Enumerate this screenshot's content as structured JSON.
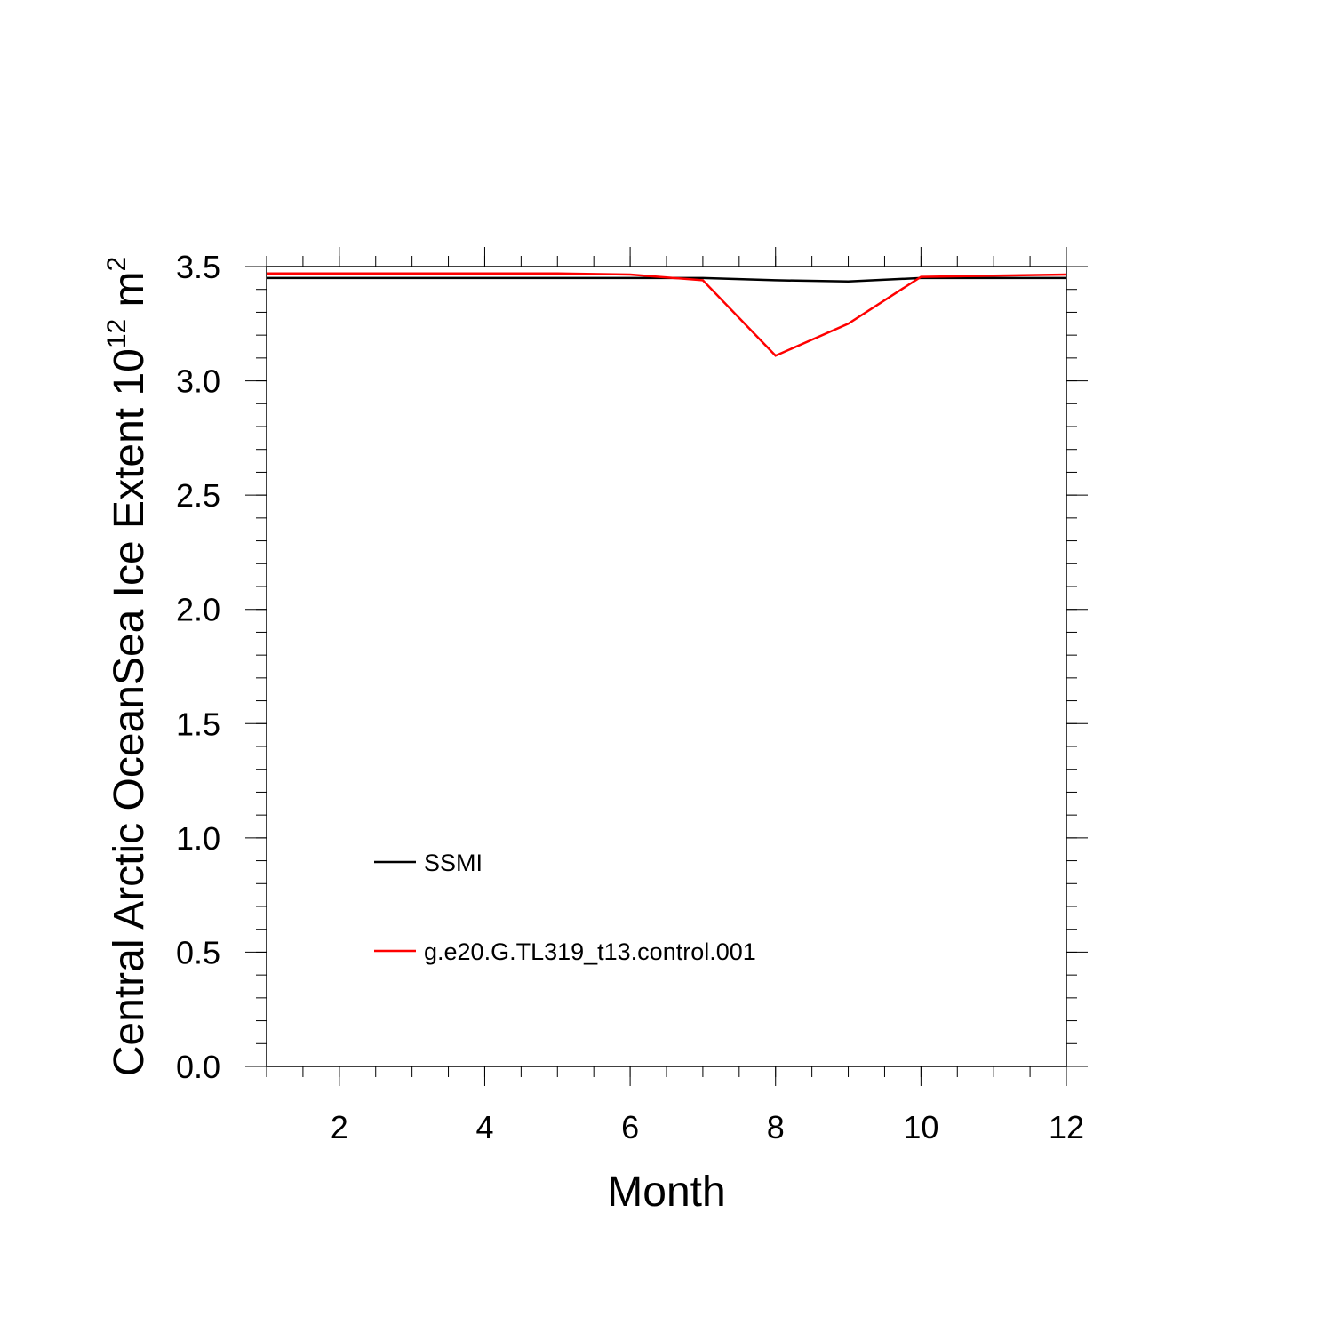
{
  "chart_data": {
    "type": "line",
    "xlabel": "Month",
    "ylabel_main": "Central Arctic OceanSea Ice Extent 10",
    "ylabel_exp": "12",
    "ylabel_unit": " m",
    "ylabel_unit_exp": "2",
    "xlim": [
      1,
      12
    ],
    "ylim": [
      0,
      3.5
    ],
    "x_ticks": [
      2,
      4,
      6,
      8,
      10,
      12
    ],
    "x_tick_labels": [
      "2",
      "4",
      "6",
      "8",
      "10",
      "12"
    ],
    "y_ticks": [
      0,
      0.5,
      1,
      1.5,
      2,
      2.5,
      3,
      3.5
    ],
    "y_tick_labels": [
      "0.0",
      "0.5",
      "1.0",
      "1.5",
      "2.0",
      "2.5",
      "3.0",
      "3.5"
    ],
    "grid": false,
    "legend_position": "lower-left",
    "x": [
      1,
      2,
      3,
      4,
      5,
      6,
      7,
      8,
      9,
      10,
      11,
      12
    ],
    "series": [
      {
        "name": "SSMI",
        "color": "#000000",
        "values": [
          3.45,
          3.45,
          3.45,
          3.45,
          3.45,
          3.45,
          3.45,
          3.44,
          3.435,
          3.45,
          3.45,
          3.45
        ]
      },
      {
        "name": "g.e20.G.TL319_t13.control.001",
        "color": "#ff0000",
        "values": [
          3.47,
          3.47,
          3.47,
          3.47,
          3.47,
          3.465,
          3.44,
          3.11,
          3.25,
          3.455,
          3.46,
          3.465
        ]
      }
    ]
  }
}
